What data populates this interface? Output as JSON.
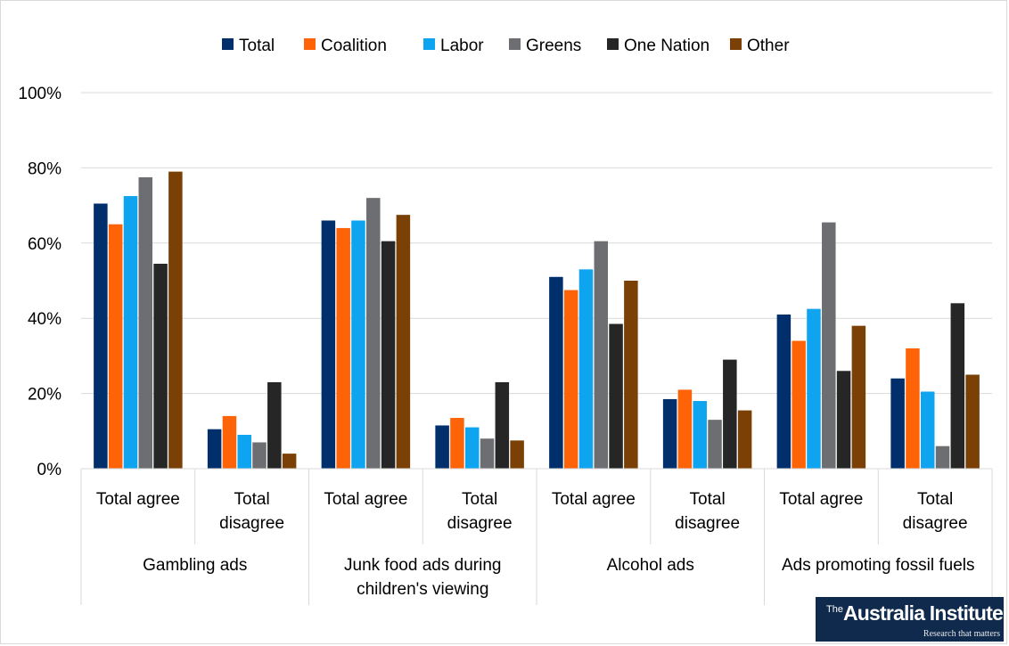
{
  "chart_data": {
    "type": "bar",
    "title": "",
    "xlabel": "",
    "ylabel": "",
    "ylim": [
      0,
      100
    ],
    "yticks": [
      "0%",
      "20%",
      "40%",
      "60%",
      "80%",
      "100%"
    ],
    "ytick_values": [
      0,
      20,
      40,
      60,
      80,
      100
    ],
    "grid": true,
    "legend_position": "top",
    "groups": [
      {
        "label": "Gambling ads",
        "categories": [
          "Total agree",
          "Total disagree"
        ]
      },
      {
        "label": "Junk food ads during children's viewing",
        "categories": [
          "Total agree",
          "Total disagree"
        ]
      },
      {
        "label": "Alcohol ads",
        "categories": [
          "Total agree",
          "Total disagree"
        ]
      },
      {
        "label": "Ads promoting fossil fuels",
        "categories": [
          "Total agree",
          "Total disagree"
        ]
      }
    ],
    "group_label_lines": [
      [
        "Gambling ads"
      ],
      [
        "Junk food ads during",
        "children's viewing"
      ],
      [
        "Alcohol ads"
      ],
      [
        "Ads promoting fossil fuels"
      ]
    ],
    "category_label_lines": {
      "Total agree": [
        "Total agree"
      ],
      "Total disagree": [
        "Total",
        "disagree"
      ]
    },
    "series": [
      {
        "name": "Total",
        "color": "#002f6c",
        "values": [
          70.5,
          10.5,
          66,
          11.5,
          51,
          18.5,
          41,
          24
        ]
      },
      {
        "name": "Coalition",
        "color": "#ff6308",
        "values": [
          65,
          14,
          64,
          13.5,
          47.5,
          21,
          34,
          32
        ]
      },
      {
        "name": "Labor",
        "color": "#0fa4f0",
        "values": [
          72.5,
          9,
          66,
          11,
          53,
          18,
          42.5,
          20.5
        ]
      },
      {
        "name": "Greens",
        "color": "#6d6e71",
        "values": [
          77.5,
          7,
          72,
          8,
          60.5,
          13,
          65.5,
          6
        ]
      },
      {
        "name": "One Nation",
        "color": "#262626",
        "values": [
          54.5,
          23,
          60.5,
          23,
          38.5,
          29,
          26,
          44
        ]
      },
      {
        "name": "Other",
        "color": "#7a4005",
        "values": [
          79,
          4,
          67.5,
          7.5,
          50,
          15.5,
          38,
          25
        ]
      }
    ]
  },
  "logo": {
    "prefix": "The",
    "name": "Australia Institute",
    "tagline": "Research that matters"
  }
}
